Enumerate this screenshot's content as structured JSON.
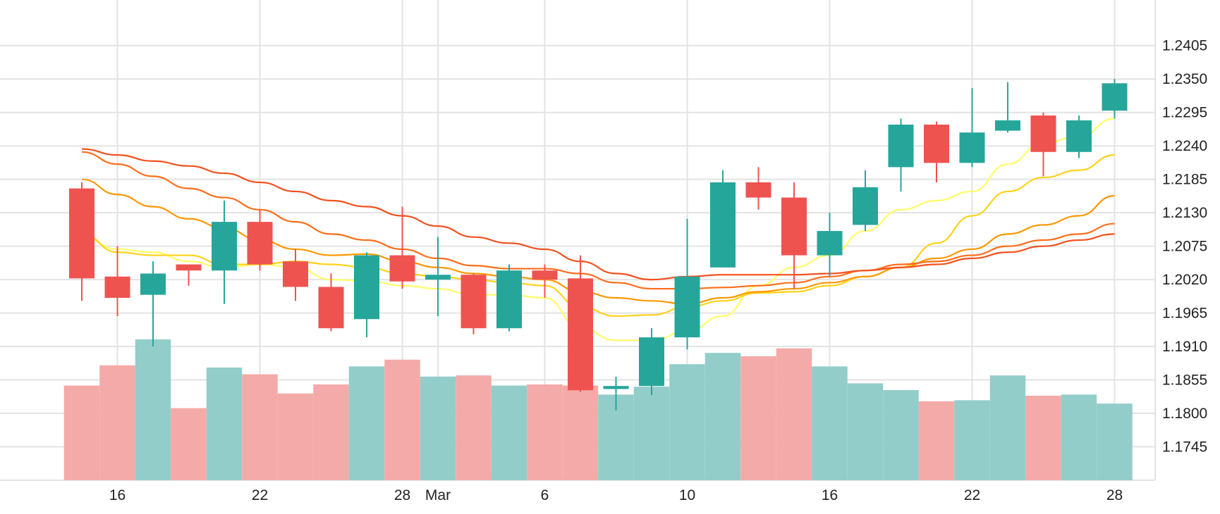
{
  "chart_data": {
    "type": "candlestick",
    "price_axis": {
      "side": "right",
      "ticks": [
        "1.2405",
        "1.2350",
        "1.2295",
        "1.2240",
        "1.2185",
        "1.2130",
        "1.2075",
        "1.2020",
        "1.1965",
        "1.1910",
        "1.1855",
        "1.1800",
        "1.1745"
      ],
      "range": [
        1.169,
        1.248
      ]
    },
    "time_axis": {
      "ticks": [
        {
          "label": "16",
          "index": 1
        },
        {
          "label": "22",
          "index": 5
        },
        {
          "label": "28",
          "index": 9
        },
        {
          "label": "Mar",
          "index": 10
        },
        {
          "label": "6",
          "index": 13
        },
        {
          "label": "10",
          "index": 17
        },
        {
          "label": "16",
          "index": 21
        },
        {
          "label": "22",
          "index": 25
        },
        {
          "label": "28",
          "index": 29
        }
      ]
    },
    "grid": true,
    "colors": {
      "up": "#26a69a",
      "down": "#ef5350",
      "volume_up": "#92cdca",
      "volume_down": "#f4aaa8",
      "grid": "#e3e3e3"
    },
    "candles": [
      {
        "o": 1.217,
        "h": 1.218,
        "l": 1.1985,
        "c": 1.2022
      },
      {
        "o": 1.2025,
        "h": 1.2075,
        "l": 1.196,
        "c": 1.199
      },
      {
        "o": 1.1995,
        "h": 1.205,
        "l": 1.191,
        "c": 1.203
      },
      {
        "o": 1.2045,
        "h": 1.2045,
        "l": 1.201,
        "c": 1.2035
      },
      {
        "o": 1.2035,
        "h": 1.215,
        "l": 1.198,
        "c": 1.2115
      },
      {
        "o": 1.2115,
        "h": 1.2135,
        "l": 1.2035,
        "c": 1.2045
      },
      {
        "o": 1.205,
        "h": 1.207,
        "l": 1.1985,
        "c": 1.2008
      },
      {
        "o": 1.2008,
        "h": 1.203,
        "l": 1.1935,
        "c": 1.194
      },
      {
        "o": 1.1955,
        "h": 1.2065,
        "l": 1.1925,
        "c": 1.206
      },
      {
        "o": 1.206,
        "h": 1.214,
        "l": 1.2005,
        "c": 1.2017
      },
      {
        "o": 1.202,
        "h": 1.209,
        "l": 1.196,
        "c": 1.2028
      },
      {
        "o": 1.2028,
        "h": 1.203,
        "l": 1.193,
        "c": 1.194
      },
      {
        "o": 1.194,
        "h": 1.2045,
        "l": 1.1935,
        "c": 1.2035
      },
      {
        "o": 1.2035,
        "h": 1.2045,
        "l": 1.199,
        "c": 1.202
      },
      {
        "o": 1.2022,
        "h": 1.206,
        "l": 1.1835,
        "c": 1.1838
      },
      {
        "o": 1.184,
        "h": 1.186,
        "l": 1.1805,
        "c": 1.1845
      },
      {
        "o": 1.1845,
        "h": 1.194,
        "l": 1.183,
        "c": 1.1925
      },
      {
        "o": 1.1925,
        "h": 1.212,
        "l": 1.1905,
        "c": 1.2025
      },
      {
        "o": 1.204,
        "h": 1.22,
        "l": 1.204,
        "c": 1.218
      },
      {
        "o": 1.218,
        "h": 1.2205,
        "l": 1.2135,
        "c": 1.2155
      },
      {
        "o": 1.2155,
        "h": 1.218,
        "l": 1.2005,
        "c": 1.206
      },
      {
        "o": 1.206,
        "h": 1.213,
        "l": 1.2025,
        "c": 1.21
      },
      {
        "o": 1.211,
        "h": 1.22,
        "l": 1.21,
        "c": 1.2172
      },
      {
        "o": 1.2205,
        "h": 1.2285,
        "l": 1.2165,
        "c": 1.2275
      },
      {
        "o": 1.2275,
        "h": 1.228,
        "l": 1.218,
        "c": 1.2212
      },
      {
        "o": 1.2212,
        "h": 1.2335,
        "l": 1.2205,
        "c": 1.2262
      },
      {
        "o": 1.2265,
        "h": 1.2345,
        "l": 1.2262,
        "c": 1.2282
      },
      {
        "o": 1.229,
        "h": 1.2295,
        "l": 1.219,
        "c": 1.223
      },
      {
        "o": 1.223,
        "h": 1.229,
        "l": 1.222,
        "c": 1.2282
      },
      {
        "o": 1.2298,
        "h": 1.235,
        "l": 1.2285,
        "c": 1.2343
      }
    ],
    "volume": {
      "scale": "relative",
      "values": [
        0.84,
        1.02,
        1.25,
        0.64,
        1.0,
        0.94,
        0.77,
        0.85,
        1.01,
        1.07,
        0.92,
        0.93,
        0.84,
        0.85,
        0.84,
        0.76,
        0.83,
        1.03,
        1.13,
        1.1,
        1.17,
        1.01,
        0.86,
        0.8,
        0.7,
        0.71,
        0.93,
        0.75,
        0.76,
        0.68
      ]
    },
    "moving_averages": [
      {
        "color": "#ffff66",
        "values": [
          1.209,
          1.207,
          1.2065,
          1.205,
          1.204,
          1.2045,
          1.204,
          1.202,
          1.2018,
          1.201,
          1.2005,
          1.1995,
          1.1995,
          1.199,
          1.194,
          1.192,
          1.192,
          1.1935,
          1.196,
          1.201,
          1.204,
          1.206,
          1.21,
          1.2135,
          1.215,
          1.2165,
          1.221,
          1.2245,
          1.2255,
          1.2285
        ]
      },
      {
        "color": "#ffd21a",
        "values": [
          1.2095,
          1.2065,
          1.206,
          1.206,
          1.2045,
          1.2045,
          1.205,
          1.2045,
          1.204,
          1.203,
          1.2025,
          1.202,
          1.2015,
          1.201,
          1.1975,
          1.196,
          1.1962,
          1.1975,
          1.1985,
          1.1998,
          1.2,
          1.201,
          1.2025,
          1.204,
          1.208,
          1.2125,
          1.2165,
          1.2188,
          1.22,
          1.2225
        ]
      },
      {
        "color": "#ff9800",
        "values": [
          1.2185,
          1.216,
          1.214,
          1.212,
          1.2105,
          1.2085,
          1.207,
          1.206,
          1.2062,
          1.205,
          1.204,
          1.203,
          1.2025,
          1.202,
          1.2,
          1.199,
          1.1985,
          1.198,
          1.199,
          1.2,
          1.2005,
          1.2015,
          1.2025,
          1.204,
          1.2055,
          1.207,
          1.2095,
          1.211,
          1.2125,
          1.2158
        ]
      },
      {
        "color": "#ff6d1a",
        "values": [
          1.223,
          1.221,
          1.219,
          1.217,
          1.2155,
          1.2135,
          1.2115,
          1.2095,
          1.2085,
          1.207,
          1.2055,
          1.2043,
          1.2038,
          1.2038,
          1.203,
          1.2015,
          1.2005,
          1.2005,
          1.2007,
          1.201,
          1.2015,
          1.2025,
          1.2035,
          1.2045,
          1.205,
          1.206,
          1.2075,
          1.2085,
          1.2095,
          1.2112
        ]
      },
      {
        "color": "#f4511e",
        "values": [
          1.2235,
          1.2225,
          1.2215,
          1.2207,
          1.2195,
          1.218,
          1.2165,
          1.215,
          1.214,
          1.2125,
          1.2108,
          1.209,
          1.208,
          1.207,
          1.205,
          1.203,
          1.202,
          1.2025,
          1.2028,
          1.2028,
          1.2028,
          1.203,
          1.2035,
          1.204,
          1.2045,
          1.2055,
          1.2065,
          1.2075,
          1.2085,
          1.2095
        ]
      }
    ]
  }
}
